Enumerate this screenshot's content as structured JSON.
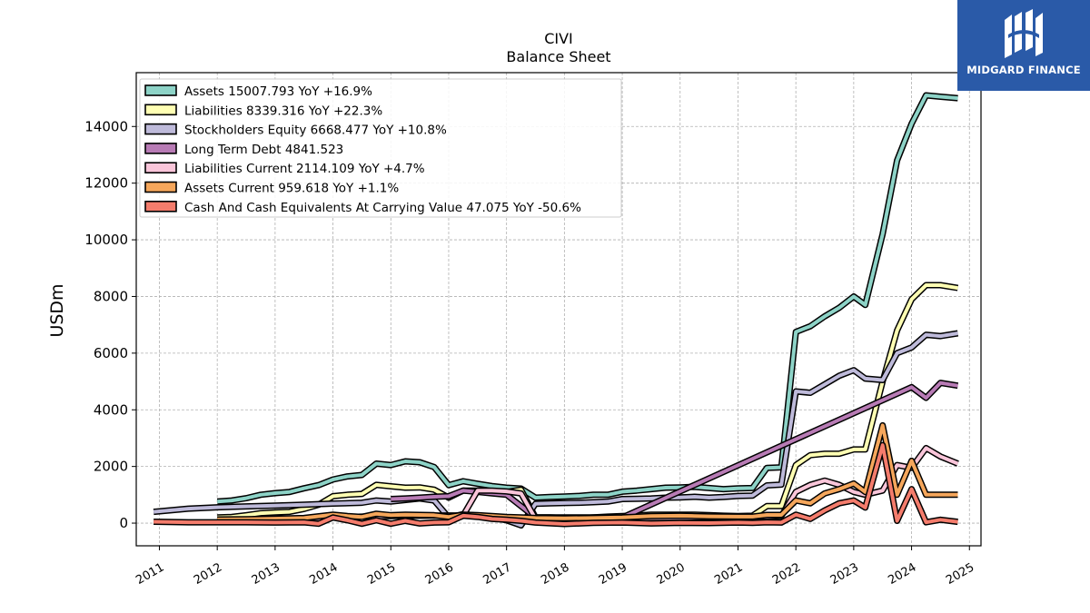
{
  "logo": {
    "text": "MIDGARD FINANCE"
  },
  "chart_data": {
    "type": "line",
    "title": "CIVI",
    "subtitle": "Balance  Sheet",
    "ylabel": "USDm",
    "xlim": [
      2010.6,
      2025.2
    ],
    "ylim": [
      -800,
      15900
    ],
    "xticks": [
      2011,
      2012,
      2013,
      2014,
      2015,
      2016,
      2017,
      2018,
      2019,
      2020,
      2021,
      2022,
      2023,
      2024,
      2025
    ],
    "yticks": [
      0,
      2000,
      4000,
      6000,
      8000,
      10000,
      12000,
      14000
    ],
    "grid": true,
    "legend_position": "top-left",
    "series": [
      {
        "name": "Assets",
        "legend": "Assets  15007.793 YoY +16.9%",
        "color": "#8dd3c7",
        "points": [
          [
            2012.0,
            760
          ],
          [
            2012.25,
            800
          ],
          [
            2012.5,
            880
          ],
          [
            2012.75,
            1000
          ],
          [
            2013.0,
            1060
          ],
          [
            2013.25,
            1100
          ],
          [
            2013.5,
            1230
          ],
          [
            2013.75,
            1340
          ],
          [
            2014.0,
            1540
          ],
          [
            2014.25,
            1650
          ],
          [
            2014.5,
            1700
          ],
          [
            2014.75,
            2100
          ],
          [
            2015.0,
            2050
          ],
          [
            2015.25,
            2180
          ],
          [
            2015.5,
            2150
          ],
          [
            2015.75,
            1980
          ],
          [
            2016.0,
            1340
          ],
          [
            2016.25,
            1480
          ],
          [
            2016.5,
            1390
          ],
          [
            2016.75,
            1310
          ],
          [
            2017.0,
            1250
          ],
          [
            2017.25,
            1220
          ],
          [
            2017.5,
            900
          ],
          [
            2017.75,
            920
          ],
          [
            2018.0,
            940
          ],
          [
            2018.25,
            960
          ],
          [
            2018.5,
            1000
          ],
          [
            2018.75,
            1000
          ],
          [
            2019.0,
            1110
          ],
          [
            2019.25,
            1150
          ],
          [
            2019.5,
            1200
          ],
          [
            2019.75,
            1250
          ],
          [
            2020.0,
            1260
          ],
          [
            2020.25,
            1280
          ],
          [
            2020.5,
            1240
          ],
          [
            2020.75,
            1200
          ],
          [
            2021.0,
            1230
          ],
          [
            2021.25,
            1240
          ],
          [
            2021.5,
            1950
          ],
          [
            2021.75,
            1970
          ],
          [
            2022.0,
            6750
          ],
          [
            2022.25,
            6950
          ],
          [
            2022.5,
            7300
          ],
          [
            2022.75,
            7600
          ],
          [
            2023.0,
            8000
          ],
          [
            2023.2,
            7700
          ],
          [
            2023.5,
            10200
          ],
          [
            2023.75,
            12800
          ],
          [
            2024.0,
            14100
          ],
          [
            2024.25,
            15100
          ],
          [
            2024.5,
            15050
          ],
          [
            2024.8,
            15000
          ]
        ]
      },
      {
        "name": "Liabilities",
        "legend": "Liabilities  8339.316 YoY +22.3%",
        "color": "#ffffb3",
        "points": [
          [
            2012.0,
            200
          ],
          [
            2012.25,
            220
          ],
          [
            2012.5,
            280
          ],
          [
            2012.75,
            350
          ],
          [
            2013.0,
            380
          ],
          [
            2013.25,
            400
          ],
          [
            2013.5,
            500
          ],
          [
            2013.75,
            650
          ],
          [
            2014.0,
            950
          ],
          [
            2014.25,
            1000
          ],
          [
            2014.5,
            1030
          ],
          [
            2014.75,
            1350
          ],
          [
            2015.0,
            1300
          ],
          [
            2015.25,
            1250
          ],
          [
            2015.5,
            1260
          ],
          [
            2015.75,
            1180
          ],
          [
            2016.0,
            900
          ],
          [
            2016.25,
            1150
          ],
          [
            2016.5,
            1150
          ],
          [
            2016.75,
            1130
          ],
          [
            2017.0,
            1100
          ],
          [
            2017.25,
            1180
          ],
          [
            2017.5,
            200
          ],
          [
            2017.75,
            200
          ],
          [
            2018.0,
            180
          ],
          [
            2018.25,
            170
          ],
          [
            2018.5,
            200
          ],
          [
            2018.75,
            230
          ],
          [
            2019.0,
            250
          ],
          [
            2019.25,
            270
          ],
          [
            2019.5,
            300
          ],
          [
            2019.75,
            300
          ],
          [
            2020.0,
            300
          ],
          [
            2020.25,
            300
          ],
          [
            2020.5,
            280
          ],
          [
            2020.75,
            260
          ],
          [
            2021.0,
            250
          ],
          [
            2021.25,
            260
          ],
          [
            2021.5,
            600
          ],
          [
            2021.75,
            600
          ],
          [
            2022.0,
            2050
          ],
          [
            2022.25,
            2400
          ],
          [
            2022.5,
            2450
          ],
          [
            2022.75,
            2450
          ],
          [
            2023.0,
            2600
          ],
          [
            2023.2,
            2600
          ],
          [
            2023.5,
            5000
          ],
          [
            2023.75,
            6800
          ],
          [
            2024.0,
            7900
          ],
          [
            2024.25,
            8400
          ],
          [
            2024.5,
            8400
          ],
          [
            2024.8,
            8300
          ]
        ]
      },
      {
        "name": "Stockholders Equity",
        "legend": "Stockholders Equity  6668.477 YoY +10.8%",
        "color": "#bebada",
        "points": [
          [
            2010.9,
            400
          ],
          [
            2011.5,
            510
          ],
          [
            2012.0,
            560
          ],
          [
            2012.5,
            590
          ],
          [
            2013.0,
            620
          ],
          [
            2013.5,
            650
          ],
          [
            2014.0,
            690
          ],
          [
            2014.5,
            720
          ],
          [
            2014.75,
            800
          ],
          [
            2015.0,
            760
          ],
          [
            2015.5,
            870
          ],
          [
            2015.75,
            800
          ],
          [
            2016.0,
            200
          ],
          [
            2016.25,
            320
          ],
          [
            2016.5,
            260
          ],
          [
            2016.75,
            200
          ],
          [
            2017.0,
            100
          ],
          [
            2017.25,
            -80
          ],
          [
            2017.5,
            680
          ],
          [
            2017.75,
            700
          ],
          [
            2018.0,
            710
          ],
          [
            2018.25,
            720
          ],
          [
            2018.5,
            740
          ],
          [
            2018.75,
            760
          ],
          [
            2019.0,
            850
          ],
          [
            2019.25,
            860
          ],
          [
            2019.5,
            870
          ],
          [
            2019.75,
            900
          ],
          [
            2020.0,
            910
          ],
          [
            2020.25,
            930
          ],
          [
            2020.5,
            900
          ],
          [
            2020.75,
            920
          ],
          [
            2021.0,
            960
          ],
          [
            2021.25,
            970
          ],
          [
            2021.5,
            1330
          ],
          [
            2021.75,
            1360
          ],
          [
            2022.0,
            4650
          ],
          [
            2022.25,
            4600
          ],
          [
            2022.5,
            4900
          ],
          [
            2022.75,
            5200
          ],
          [
            2023.0,
            5400
          ],
          [
            2023.2,
            5100
          ],
          [
            2023.5,
            5050
          ],
          [
            2023.75,
            6000
          ],
          [
            2024.0,
            6200
          ],
          [
            2024.25,
            6650
          ],
          [
            2024.5,
            6600
          ],
          [
            2024.8,
            6700
          ]
        ]
      },
      {
        "name": "Long Term Debt",
        "legend": "Long Term Debt  4841.523",
        "color": "#b87bb5",
        "points": [
          [
            2015.0,
            850
          ],
          [
            2015.25,
            870
          ],
          [
            2015.5,
            900
          ],
          [
            2015.75,
            930
          ],
          [
            2016.0,
            950
          ],
          [
            2016.25,
            1150
          ],
          [
            2016.5,
            1100
          ],
          [
            2016.75,
            1050
          ],
          [
            2017.0,
            1000
          ],
          [
            2017.5,
            200
          ],
          [
            2019.0,
            200
          ],
          [
            2024.0,
            4800
          ],
          [
            2024.25,
            4420
          ],
          [
            2024.5,
            4950
          ],
          [
            2024.8,
            4850
          ]
        ]
      },
      {
        "name": "Liabilities Current",
        "legend": "Liabilities Current  2114.109 YoY +4.7%",
        "color": "#f9c5d9",
        "points": [
          [
            2012.0,
            100
          ],
          [
            2012.5,
            120
          ],
          [
            2013.0,
            130
          ],
          [
            2013.5,
            150
          ],
          [
            2014.0,
            200
          ],
          [
            2014.5,
            230
          ],
          [
            2015.0,
            250
          ],
          [
            2015.5,
            260
          ],
          [
            2016.0,
            270
          ],
          [
            2016.25,
            270
          ],
          [
            2016.5,
            1150
          ],
          [
            2016.75,
            1150
          ],
          [
            2017.0,
            1120
          ],
          [
            2017.25,
            1050
          ],
          [
            2017.5,
            160
          ],
          [
            2018.0,
            150
          ],
          [
            2018.5,
            160
          ],
          [
            2019.0,
            170
          ],
          [
            2019.5,
            180
          ],
          [
            2020.0,
            190
          ],
          [
            2020.5,
            200
          ],
          [
            2021.0,
            200
          ],
          [
            2021.25,
            210
          ],
          [
            2021.5,
            230
          ],
          [
            2021.75,
            250
          ],
          [
            2022.0,
            1100
          ],
          [
            2022.25,
            1350
          ],
          [
            2022.5,
            1500
          ],
          [
            2022.75,
            1350
          ],
          [
            2023.0,
            1100
          ],
          [
            2023.2,
            1000
          ],
          [
            2023.5,
            1150
          ],
          [
            2023.75,
            2050
          ],
          [
            2024.0,
            1950
          ],
          [
            2024.25,
            2650
          ],
          [
            2024.5,
            2350
          ],
          [
            2024.8,
            2100
          ]
        ]
      },
      {
        "name": "Assets Current",
        "legend": "Assets Current  959.618 YoY +1.1%",
        "color": "#f5a65b",
        "points": [
          [
            2012.0,
            130
          ],
          [
            2012.5,
            140
          ],
          [
            2013.0,
            160
          ],
          [
            2013.5,
            180
          ],
          [
            2014.0,
            300
          ],
          [
            2014.25,
            250
          ],
          [
            2014.5,
            220
          ],
          [
            2014.75,
            330
          ],
          [
            2015.0,
            280
          ],
          [
            2015.25,
            300
          ],
          [
            2015.5,
            290
          ],
          [
            2015.75,
            280
          ],
          [
            2016.0,
            220
          ],
          [
            2016.25,
            300
          ],
          [
            2016.5,
            280
          ],
          [
            2016.75,
            250
          ],
          [
            2017.0,
            220
          ],
          [
            2017.25,
            200
          ],
          [
            2017.5,
            180
          ],
          [
            2018.0,
            170
          ],
          [
            2018.5,
            180
          ],
          [
            2019.0,
            200
          ],
          [
            2019.5,
            250
          ],
          [
            2020.0,
            260
          ],
          [
            2020.25,
            250
          ],
          [
            2020.5,
            240
          ],
          [
            2021.0,
            230
          ],
          [
            2021.25,
            230
          ],
          [
            2021.5,
            290
          ],
          [
            2021.75,
            290
          ],
          [
            2022.0,
            800
          ],
          [
            2022.25,
            700
          ],
          [
            2022.5,
            1050
          ],
          [
            2022.75,
            1200
          ],
          [
            2023.0,
            1400
          ],
          [
            2023.2,
            1100
          ],
          [
            2023.5,
            3450
          ],
          [
            2023.75,
            1000
          ],
          [
            2024.0,
            2200
          ],
          [
            2024.25,
            1000
          ],
          [
            2024.5,
            1000
          ],
          [
            2024.8,
            1000
          ]
        ]
      },
      {
        "name": "Cash And Cash Equivalents At Carrying Value",
        "legend": "Cash And Cash Equivalents At Carrying Value  47.075 YoY -50.6%",
        "color": "#f47c6c",
        "points": [
          [
            2010.9,
            50
          ],
          [
            2011.5,
            30
          ],
          [
            2012.0,
            30
          ],
          [
            2012.5,
            30
          ],
          [
            2013.0,
            20
          ],
          [
            2013.5,
            30
          ],
          [
            2013.75,
            -20
          ],
          [
            2014.0,
            200
          ],
          [
            2014.25,
            100
          ],
          [
            2014.5,
            -20
          ],
          [
            2014.75,
            100
          ],
          [
            2015.0,
            -20
          ],
          [
            2015.25,
            80
          ],
          [
            2015.5,
            -10
          ],
          [
            2015.75,
            20
          ],
          [
            2016.0,
            30
          ],
          [
            2016.25,
            260
          ],
          [
            2016.5,
            220
          ],
          [
            2016.75,
            150
          ],
          [
            2017.0,
            120
          ],
          [
            2017.25,
            80
          ],
          [
            2017.5,
            20
          ],
          [
            2018.0,
            -30
          ],
          [
            2018.5,
            10
          ],
          [
            2019.0,
            20
          ],
          [
            2019.5,
            -10
          ],
          [
            2020.0,
            10
          ],
          [
            2020.5,
            0
          ],
          [
            2021.0,
            20
          ],
          [
            2021.25,
            10
          ],
          [
            2021.5,
            30
          ],
          [
            2021.75,
            20
          ],
          [
            2022.0,
            300
          ],
          [
            2022.25,
            150
          ],
          [
            2022.5,
            450
          ],
          [
            2022.75,
            700
          ],
          [
            2023.0,
            800
          ],
          [
            2023.2,
            550
          ],
          [
            2023.5,
            2750
          ],
          [
            2023.75,
            80
          ],
          [
            2024.0,
            1200
          ],
          [
            2024.25,
            30
          ],
          [
            2024.5,
            120
          ],
          [
            2024.8,
            47
          ]
        ]
      }
    ]
  }
}
